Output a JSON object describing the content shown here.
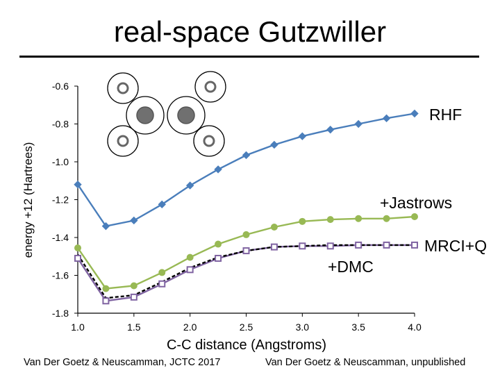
{
  "slide": {
    "title": "real-space Gutzwiller",
    "caption_left": "Van Der Goetz & Neuscamman, JCTC 2017",
    "caption_right": "Van Der Goetz & Neuscamman, unpublished"
  },
  "chart_data": {
    "type": "line",
    "title": "",
    "xlabel": "C-C distance (Angstroms)",
    "ylabel": "energy +12 (Hartrees)",
    "xlim": [
      1.0,
      4.0
    ],
    "ylim": [
      -1.8,
      -0.6
    ],
    "xticks": [
      "1.0",
      "1.5",
      "2.0",
      "2.5",
      "3.0",
      "3.5",
      "4.0"
    ],
    "yticks": [
      "-0.6",
      "-0.8",
      "-1.0",
      "-1.2",
      "-1.4",
      "-1.6",
      "-1.8"
    ],
    "grid": false,
    "series": [
      {
        "name": "RHF",
        "color": "#4a7ebb",
        "marker": "diamond",
        "x": [
          1.0,
          1.25,
          1.5,
          1.75,
          2.0,
          2.25,
          2.5,
          2.75,
          3.0,
          3.25,
          3.5,
          3.75,
          4.0
        ],
        "y": [
          -1.12,
          -1.34,
          -1.31,
          -1.225,
          -1.125,
          -1.04,
          -0.965,
          -0.91,
          -0.865,
          -0.83,
          -0.8,
          -0.77,
          -0.745
        ]
      },
      {
        "name": "+Jastrows",
        "color": "#98b954",
        "marker": "circle",
        "x": [
          1.0,
          1.25,
          1.5,
          1.75,
          2.0,
          2.25,
          2.5,
          2.75,
          3.0,
          3.25,
          3.5,
          3.75,
          4.0
        ],
        "y": [
          -1.455,
          -1.67,
          -1.655,
          -1.585,
          -1.505,
          -1.435,
          -1.385,
          -1.345,
          -1.315,
          -1.305,
          -1.3,
          -1.3,
          -1.29
        ]
      },
      {
        "name": "+DMC",
        "color": "#8064a2",
        "marker": "square",
        "x": [
          1.0,
          1.25,
          1.5,
          1.75,
          2.0,
          2.25,
          2.5,
          2.75,
          3.0,
          3.25,
          3.5,
          3.75,
          4.0
        ],
        "y": [
          -1.51,
          -1.735,
          -1.715,
          -1.645,
          -1.57,
          -1.51,
          -1.47,
          -1.45,
          -1.445,
          -1.445,
          -1.44,
          -1.44,
          -1.44
        ]
      },
      {
        "name": "MRCI+Q",
        "color": "#000000",
        "marker": "none",
        "style": "dashed",
        "x": [
          1.0,
          1.25,
          1.5,
          1.75,
          2.0,
          2.25,
          2.5,
          2.75,
          3.0,
          3.25,
          3.5,
          3.75,
          4.0
        ],
        "y": [
          -1.49,
          -1.72,
          -1.705,
          -1.635,
          -1.56,
          -1.505,
          -1.47,
          -1.45,
          -1.445,
          -1.44,
          -1.44,
          -1.44,
          -1.44
        ]
      }
    ]
  }
}
